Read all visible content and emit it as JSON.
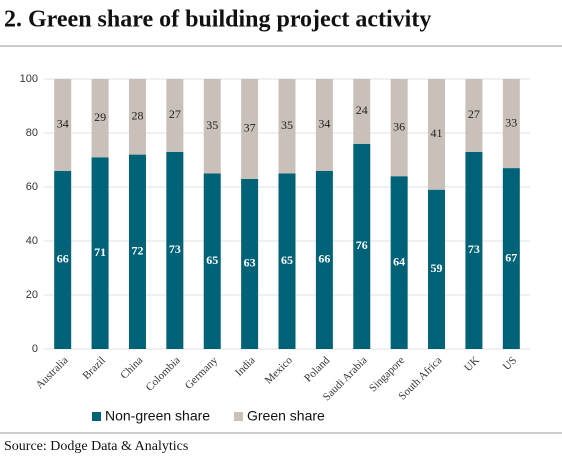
{
  "chart_data": {
    "type": "stacked_bar",
    "title": "2. Green share of building project activity",
    "source": "Source: Dodge Data & Analytics",
    "categories": [
      "Australia",
      "Brazil",
      "China",
      "Colombia",
      "Germany",
      "India",
      "Mexico",
      "Poland",
      "Saudi Arabia",
      "Singapore",
      "South Africa",
      "UK",
      "US"
    ],
    "series": [
      {
        "name": "Non-green share",
        "color": "#006276",
        "label_color": "#ffffff",
        "values": [
          66,
          71,
          72,
          73,
          65,
          63,
          65,
          66,
          76,
          64,
          59,
          73,
          67
        ]
      },
      {
        "name": "Green share",
        "color": "#c9c0b9",
        "label_color": "#222222",
        "values": [
          34,
          29,
          28,
          27,
          35,
          37,
          35,
          34,
          24,
          36,
          41,
          27,
          33
        ]
      }
    ],
    "ylim": [
      0,
      100
    ],
    "yticks": [
      0,
      20,
      40,
      60,
      80,
      100
    ],
    "grid": true,
    "legend": "bottom"
  }
}
